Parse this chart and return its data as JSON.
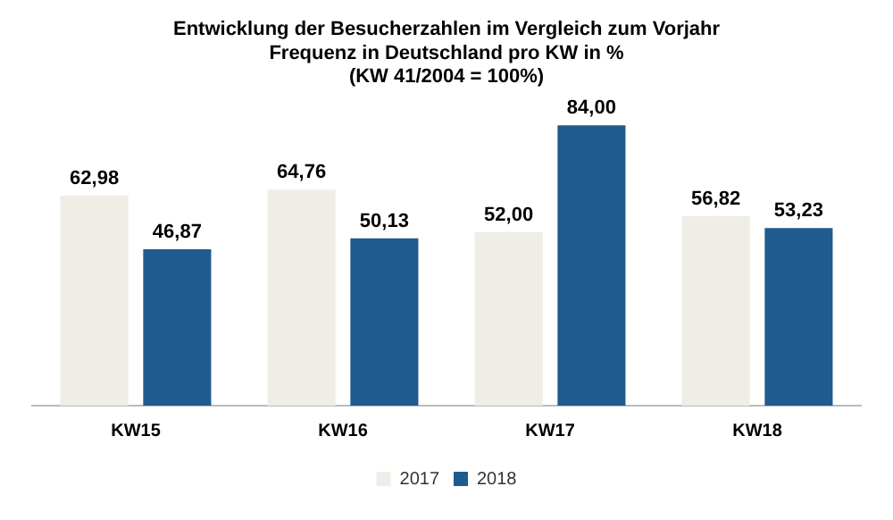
{
  "chart_data": {
    "type": "bar",
    "title": [
      "Entwicklung der Besucherzahlen im Vergleich zum Vorjahr",
      "Frequenz in Deutschland pro KW in %",
      "(KW 41/2004 = 100%)"
    ],
    "categories": [
      "KW15",
      "KW16",
      "KW17",
      "KW18"
    ],
    "series": [
      {
        "name": "2017",
        "color": "#f0ede6",
        "values": [
          62.98,
          64.76,
          52.0,
          56.82
        ],
        "value_labels": [
          "62,98",
          "64,76",
          "52,00",
          "56,82"
        ]
      },
      {
        "name": "2018",
        "color": "#1f5b8e",
        "values": [
          46.87,
          50.13,
          84.0,
          53.23
        ],
        "value_labels": [
          "46,87",
          "50,13",
          "84,00",
          "53,23"
        ]
      }
    ],
    "legend": "bottom",
    "grid": false
  }
}
